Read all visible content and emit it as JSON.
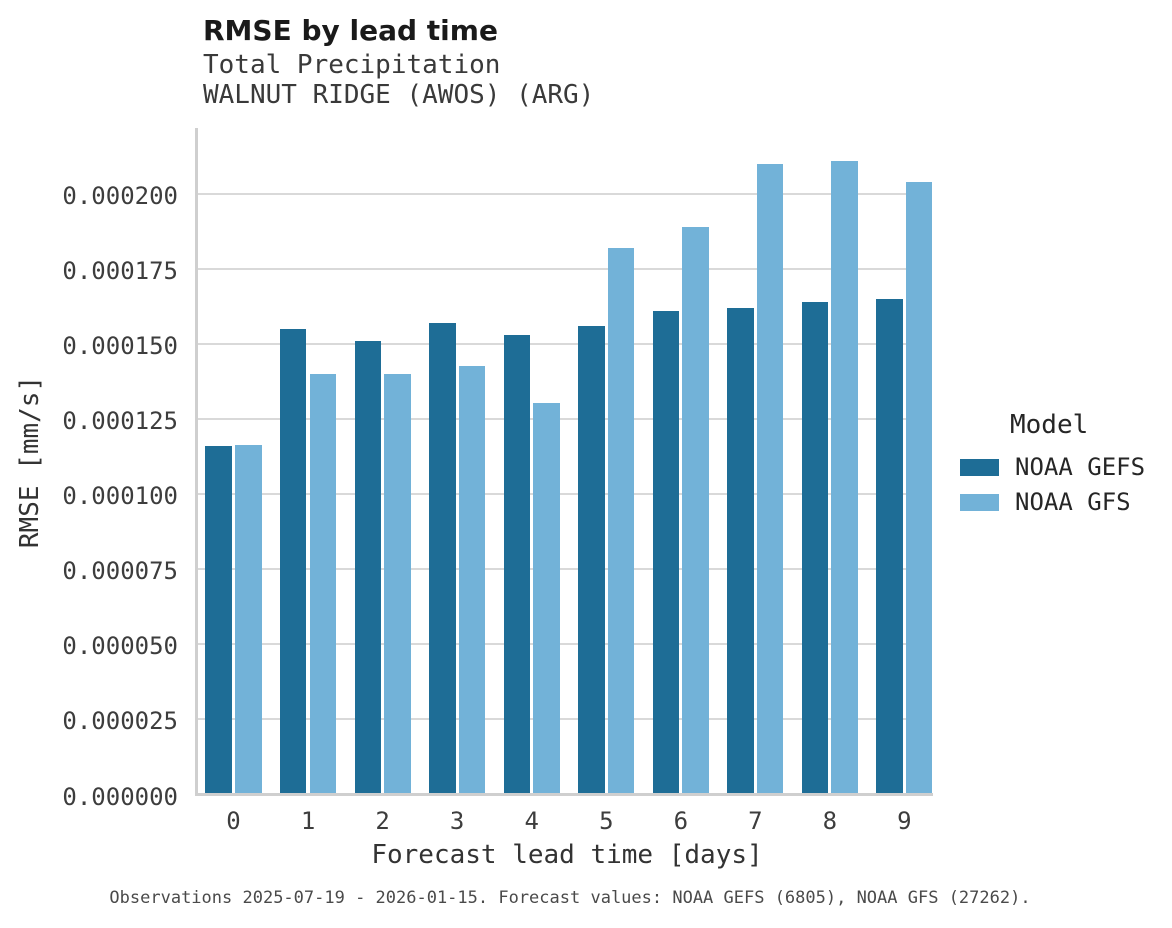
{
  "chart_data": {
    "type": "bar",
    "title": "RMSE by lead time",
    "subtitle_lines": [
      "Total Precipitation",
      "WALNUT RIDGE (AWOS) (ARG)"
    ],
    "xlabel": "Forecast lead time [days]",
    "ylabel": "RMSE [mm/s]",
    "categories": [
      "0",
      "1",
      "2",
      "3",
      "4",
      "5",
      "6",
      "7",
      "8",
      "9"
    ],
    "series": [
      {
        "name": "NOAA GEFS",
        "color": "#1e6d96",
        "values": [
          0.000116,
          0.000155,
          0.000151,
          0.000157,
          0.000153,
          0.000156,
          0.000161,
          0.000162,
          0.000164,
          0.000165
        ]
      },
      {
        "name": "NOAA GFS",
        "color": "#72b2d8",
        "values": [
          0.0001165,
          0.00014,
          0.00014,
          0.0001425,
          0.0001305,
          0.000182,
          0.000189,
          0.00021,
          0.000211,
          0.000204
        ]
      }
    ],
    "yticks": [
      0,
      2.5e-05,
      5e-05,
      7.5e-05,
      0.0001,
      0.000125,
      0.00015,
      0.000175,
      0.0002
    ],
    "ytick_labels": [
      "0.000000",
      "0.000025",
      "0.000050",
      "0.000075",
      "0.000100",
      "0.000125",
      "0.000150",
      "0.000175",
      "0.000200"
    ],
    "ylim": [
      0,
      0.000222
    ],
    "grid": "horizontal",
    "legend_title": "Model",
    "legend_position": "right"
  },
  "legend": {
    "title": "Model",
    "entries": [
      {
        "label": "NOAA GEFS",
        "color": "#1e6d96"
      },
      {
        "label": "NOAA GFS",
        "color": "#72b2d8"
      }
    ]
  },
  "footer": {
    "caption": "Observations 2025-07-19 - 2026-01-15. Forecast values: NOAA GEFS (6805), NOAA GFS (27262)."
  },
  "colors": {
    "gefs_bar": "#1e6d96",
    "gfs_bar": "#72b2d8",
    "gridline": "#d9d9d9",
    "spine": "#cfcfcf",
    "title_text": "#1a1a1a",
    "subtitle_text": "#3a3a3a",
    "tick_text": "#3d3d3d",
    "footer_text": "#4a4a4a"
  }
}
